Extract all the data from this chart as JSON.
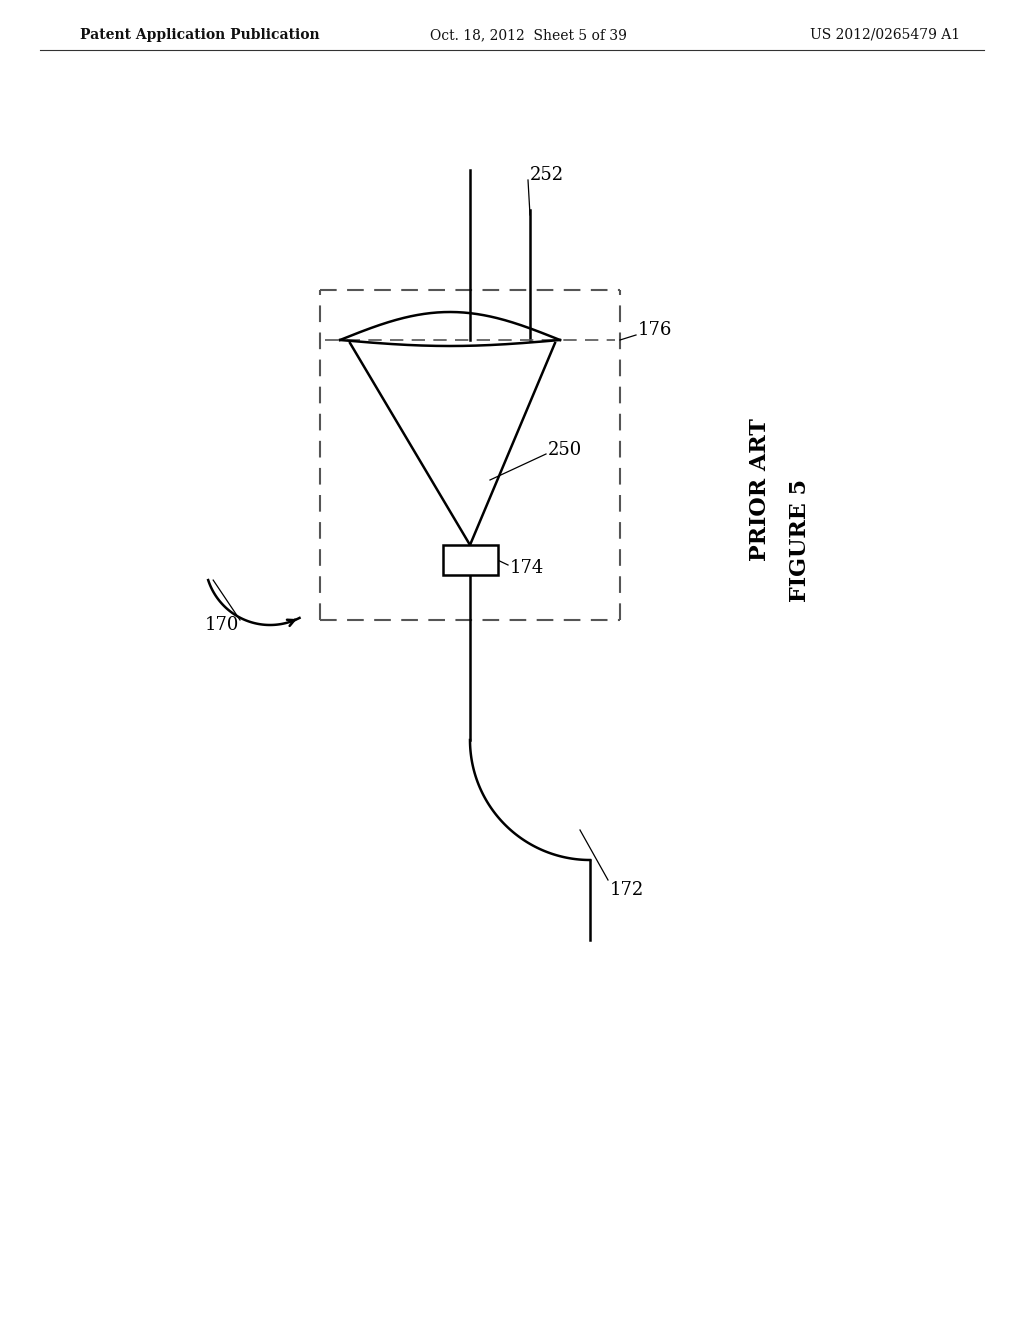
{
  "bg_color": "#ffffff",
  "line_color": "#000000",
  "dashed_color": "#555555",
  "header_left": "Patent Application Publication",
  "header_center": "Oct. 18, 2012  Sheet 5 of 39",
  "header_right": "US 2012/0265479 A1",
  "figure_label": "FIGURE 5",
  "prior_art_label": "PRIOR ART",
  "fig_width": 10.24,
  "fig_height": 13.2,
  "dpi": 100
}
